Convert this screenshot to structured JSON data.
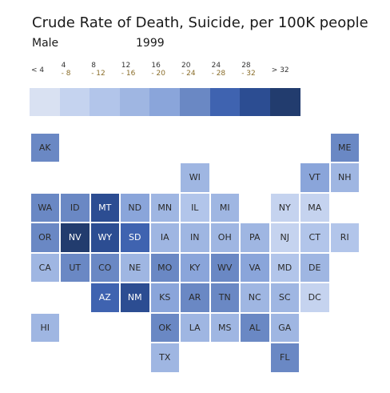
{
  "title": "Crude Rate of Death, Suicide, per 100K people",
  "subtitle_sex": "Male",
  "subtitle_year": "1999",
  "chart_data": {
    "type": "heatmap",
    "title": "Crude Rate of Death, Suicide, per 100K people",
    "subtitle": "Male 1999",
    "legend": {
      "bins": [
        {
          "label": "< 4",
          "line2": "",
          "color": "#d9e1f2"
        },
        {
          "label": "4",
          "line2": "- 8",
          "color": "#c5d3ef"
        },
        {
          "label": "8",
          "line2": "- 12",
          "color": "#b2c5ea"
        },
        {
          "label": "12",
          "line2": "- 16",
          "color": "#9fb6e2"
        },
        {
          "label": "16",
          "line2": "- 20",
          "color": "#8aa5da"
        },
        {
          "label": "20",
          "line2": "- 24",
          "color": "#6a88c4"
        },
        {
          "label": "24",
          "line2": "- 28",
          "color": "#3f63b0"
        },
        {
          "label": "28",
          "line2": "- 32",
          "color": "#2c4d92"
        },
        {
          "label": "> 32",
          "line2": "",
          "color": "#223c6e"
        }
      ]
    },
    "states": [
      {
        "code": "AK",
        "row": 0,
        "col": 0,
        "bin": 5
      },
      {
        "code": "ME",
        "row": 0,
        "col": 10,
        "bin": 5
      },
      {
        "code": "WI",
        "row": 1,
        "col": 5,
        "bin": 3
      },
      {
        "code": "VT",
        "row": 1,
        "col": 9,
        "bin": 4
      },
      {
        "code": "NH",
        "row": 1,
        "col": 10,
        "bin": 3
      },
      {
        "code": "WA",
        "row": 2,
        "col": 0,
        "bin": 5
      },
      {
        "code": "ID",
        "row": 2,
        "col": 1,
        "bin": 5
      },
      {
        "code": "MT",
        "row": 2,
        "col": 2,
        "bin": 7
      },
      {
        "code": "ND",
        "row": 2,
        "col": 3,
        "bin": 4
      },
      {
        "code": "MN",
        "row": 2,
        "col": 4,
        "bin": 3
      },
      {
        "code": "IL",
        "row": 2,
        "col": 5,
        "bin": 2
      },
      {
        "code": "MI",
        "row": 2,
        "col": 6,
        "bin": 3
      },
      {
        "code": "NY",
        "row": 2,
        "col": 8,
        "bin": 1
      },
      {
        "code": "MA",
        "row": 2,
        "col": 9,
        "bin": 1
      },
      {
        "code": "OR",
        "row": 3,
        "col": 0,
        "bin": 5
      },
      {
        "code": "NV",
        "row": 3,
        "col": 1,
        "bin": 8
      },
      {
        "code": "WY",
        "row": 3,
        "col": 2,
        "bin": 7
      },
      {
        "code": "SD",
        "row": 3,
        "col": 3,
        "bin": 6
      },
      {
        "code": "IA",
        "row": 3,
        "col": 4,
        "bin": 3
      },
      {
        "code": "IN",
        "row": 3,
        "col": 5,
        "bin": 3
      },
      {
        "code": "OH",
        "row": 3,
        "col": 6,
        "bin": 3
      },
      {
        "code": "PA",
        "row": 3,
        "col": 7,
        "bin": 3
      },
      {
        "code": "NJ",
        "row": 3,
        "col": 8,
        "bin": 1
      },
      {
        "code": "CT",
        "row": 3,
        "col": 9,
        "bin": 2
      },
      {
        "code": "RI",
        "row": 3,
        "col": 10,
        "bin": 2
      },
      {
        "code": "CA",
        "row": 4,
        "col": 0,
        "bin": 3
      },
      {
        "code": "UT",
        "row": 4,
        "col": 1,
        "bin": 5
      },
      {
        "code": "CO",
        "row": 4,
        "col": 2,
        "bin": 5
      },
      {
        "code": "NE",
        "row": 4,
        "col": 3,
        "bin": 3
      },
      {
        "code": "MO",
        "row": 4,
        "col": 4,
        "bin": 5
      },
      {
        "code": "KY",
        "row": 4,
        "col": 5,
        "bin": 4
      },
      {
        "code": "WV",
        "row": 4,
        "col": 6,
        "bin": 5
      },
      {
        "code": "VA",
        "row": 4,
        "col": 7,
        "bin": 4
      },
      {
        "code": "MD",
        "row": 4,
        "col": 8,
        "bin": 2
      },
      {
        "code": "DE",
        "row": 4,
        "col": 9,
        "bin": 3
      },
      {
        "code": "AZ",
        "row": 5,
        "col": 2,
        "bin": 6
      },
      {
        "code": "NM",
        "row": 5,
        "col": 3,
        "bin": 7
      },
      {
        "code": "KS",
        "row": 5,
        "col": 4,
        "bin": 4
      },
      {
        "code": "AR",
        "row": 5,
        "col": 5,
        "bin": 5
      },
      {
        "code": "TN",
        "row": 5,
        "col": 6,
        "bin": 5
      },
      {
        "code": "NC",
        "row": 5,
        "col": 7,
        "bin": 3
      },
      {
        "code": "SC",
        "row": 5,
        "col": 8,
        "bin": 3
      },
      {
        "code": "DC",
        "row": 5,
        "col": 9,
        "bin": 1
      },
      {
        "code": "HI",
        "row": 6,
        "col": 0,
        "bin": 3
      },
      {
        "code": "OK",
        "row": 6,
        "col": 4,
        "bin": 5
      },
      {
        "code": "LA",
        "row": 6,
        "col": 5,
        "bin": 3
      },
      {
        "code": "MS",
        "row": 6,
        "col": 6,
        "bin": 3
      },
      {
        "code": "AL",
        "row": 6,
        "col": 7,
        "bin": 5
      },
      {
        "code": "GA",
        "row": 6,
        "col": 8,
        "bin": 3
      },
      {
        "code": "TX",
        "row": 7,
        "col": 4,
        "bin": 3
      },
      {
        "code": "FL",
        "row": 7,
        "col": 8,
        "bin": 5
      }
    ]
  }
}
